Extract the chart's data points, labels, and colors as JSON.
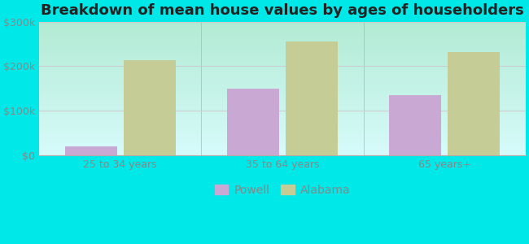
{
  "title": "Breakdown of mean house values by ages of householders",
  "categories": [
    "25 to 34 years",
    "35 to 64 years",
    "65 years+"
  ],
  "powell_values": [
    20000,
    150000,
    135000
  ],
  "alabama_values": [
    213000,
    255000,
    232000
  ],
  "powell_color": "#c9a8d4",
  "alabama_color": "#c5cc96",
  "background_outer": "#00e8e8",
  "background_inner_top": "#d4ecd0",
  "background_inner_bottom": "#f5fdf0",
  "ylim": [
    0,
    300000
  ],
  "yticks": [
    0,
    100000,
    200000,
    300000
  ],
  "ytick_labels": [
    "$0",
    "$100k",
    "$200k",
    "$300k"
  ],
  "legend_labels": [
    "Powell",
    "Alabama"
  ],
  "bar_width": 0.32,
  "title_fontsize": 13,
  "axis_label_fontsize": 9,
  "legend_fontsize": 10,
  "divider_color": "#aaaaaa",
  "grid_color": "#cccccc",
  "tick_color": "#888888"
}
